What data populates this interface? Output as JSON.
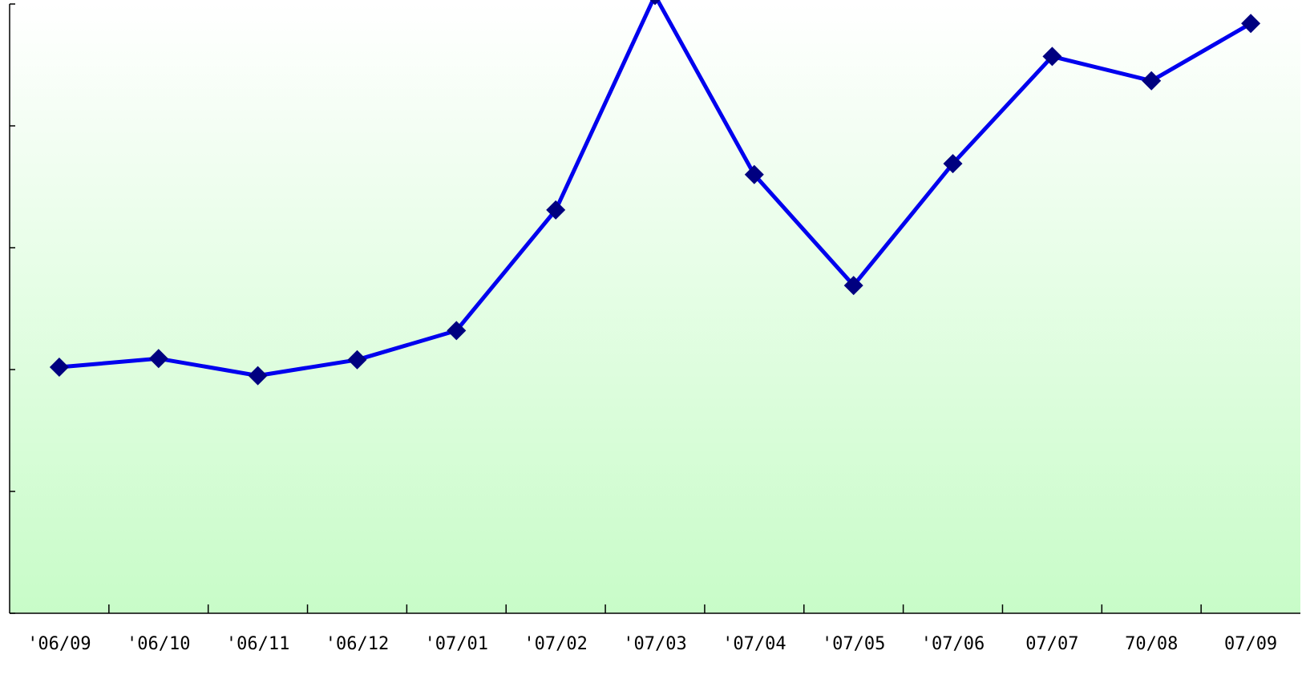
{
  "chart_data": {
    "type": "line",
    "categories": [
      "'06/09",
      "'06/10",
      "'06/11",
      "'06/12",
      "'07/01",
      "'07/02",
      "'07/03",
      "'07/04",
      "'07/05",
      "'07/06",
      "07/07",
      "70/08",
      "07/09"
    ],
    "series": [
      {
        "values": [
          1.02,
          1.09,
          0.95,
          1.08,
          1.32,
          2.31,
          4.07,
          2.6,
          1.69,
          2.69,
          3.57,
          3.37,
          3.84
        ]
      }
    ],
    "ylim": [
      -1,
      4.0
    ],
    "yticks": [
      -1,
      0,
      1,
      2,
      3,
      4
    ],
    "grid": false,
    "colors": {
      "line": "#0000ee",
      "marker": "#000080",
      "background_top": "#ffffff",
      "background_bottom": "#c8fcc8"
    }
  }
}
